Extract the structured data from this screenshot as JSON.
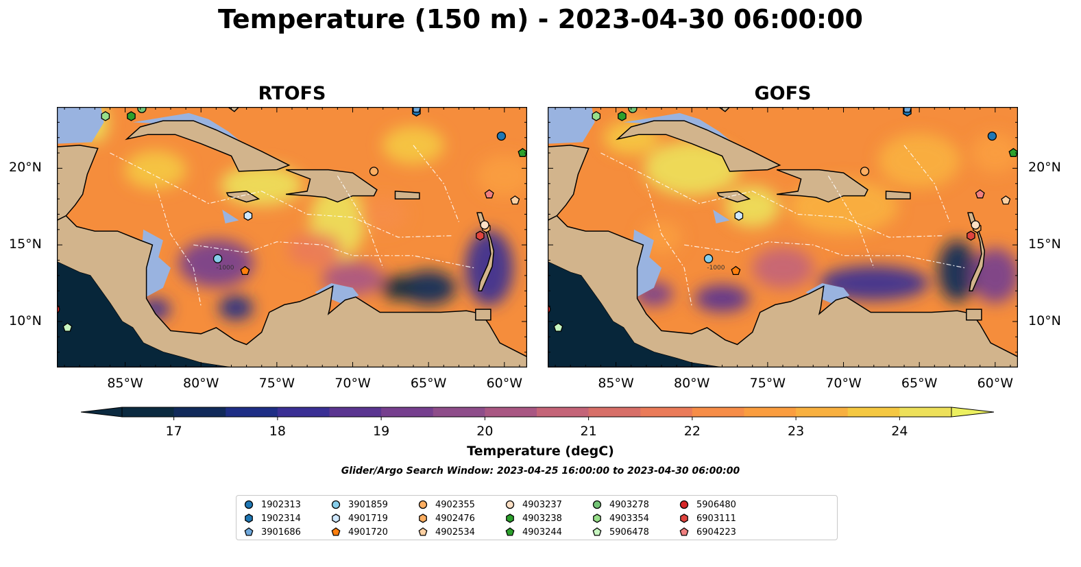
{
  "title": "Temperature (150 m) - 2023-04-30 06:00:00",
  "panels": [
    {
      "title": "RTOFS"
    },
    {
      "title": "GOFS"
    }
  ],
  "map": {
    "lon_range": [
      -89.5,
      -58.5
    ],
    "lat_range": [
      7,
      24
    ],
    "lat_ticks": [
      {
        "value": 20,
        "label": "20°N"
      },
      {
        "value": 15,
        "label": "15°N"
      },
      {
        "value": 10,
        "label": "10°N"
      }
    ],
    "lon_ticks": [
      {
        "value": -85,
        "label": "85°W"
      },
      {
        "value": -80,
        "label": "80°W"
      },
      {
        "value": -75,
        "label": "75°W"
      },
      {
        "value": -70,
        "label": "70°W"
      },
      {
        "value": -65,
        "label": "65°W"
      },
      {
        "value": -60,
        "label": "60°W"
      }
    ],
    "contour_label": "-1000",
    "colors": {
      "land": "#d2b48c",
      "shelf": "#99b3e0",
      "deep": "#07263a",
      "warm": "#f58a3a"
    }
  },
  "colorbar": {
    "label": "Temperature (degC)",
    "min": 16.5,
    "max": 24.5,
    "ticks": [
      "17",
      "18",
      "19",
      "20",
      "21",
      "22",
      "23",
      "24"
    ],
    "colors": [
      "#0b2a40",
      "#112a5a",
      "#1e2e85",
      "#3a2f94",
      "#5a3590",
      "#763f8e",
      "#8e4d8a",
      "#a95783",
      "#c46478",
      "#d76f68",
      "#ea7b59",
      "#f68d48",
      "#fa9d3f",
      "#f8b040",
      "#f5c842",
      "#ede05a"
    ]
  },
  "search_window": "Glider/Argo Search Window: 2023-04-25 16:00:00 to 2023-04-30 06:00:00",
  "floats": [
    {
      "id": "1902313",
      "marker": "circle",
      "color": "#1f77b4",
      "lon": -60.2,
      "lat": 22.1
    },
    {
      "id": "1902314",
      "marker": "hexagon",
      "color": "#1f77b4",
      "lon": -65.8,
      "lat": 23.7
    },
    {
      "id": "3901686",
      "marker": "pentagon",
      "color": "#6fa8dc",
      "lon": -65.8,
      "lat": 23.9
    },
    {
      "id": "3901859",
      "marker": "circle",
      "color": "#87ceeb",
      "lon": -78.9,
      "lat": 14.1
    },
    {
      "id": "4901719",
      "marker": "hexagon",
      "color": "#cfe8ff",
      "lon": -76.9,
      "lat": 16.9
    },
    {
      "id": "4901720",
      "marker": "pentagon",
      "color": "#ff7f0e",
      "lon": -77.1,
      "lat": 13.3
    },
    {
      "id": "4902355",
      "marker": "circle",
      "color": "#fdae61",
      "lon": -68.6,
      "lat": 19.8
    },
    {
      "id": "4902476",
      "marker": "hexagon",
      "color": "#fdae61",
      "lon": -61.2,
      "lat": 16.1
    },
    {
      "id": "4902534",
      "marker": "pentagon",
      "color": "#fdd0a2",
      "lon": -59.3,
      "lat": 17.9
    },
    {
      "id": "4903237",
      "marker": "circle",
      "color": "#fde0c5",
      "lon": -61.3,
      "lat": 16.3
    },
    {
      "id": "4903238",
      "marker": "hexagon",
      "color": "#2ca02c",
      "lon": -84.6,
      "lat": 23.4
    },
    {
      "id": "4903244",
      "marker": "pentagon",
      "color": "#2ca02c",
      "lon": -58.8,
      "lat": 21.0
    },
    {
      "id": "4903278",
      "marker": "circle",
      "color": "#74c476",
      "lon": -83.9,
      "lat": 23.9
    },
    {
      "id": "4903354",
      "marker": "hexagon",
      "color": "#98df8a",
      "lon": -86.3,
      "lat": 23.4
    },
    {
      "id": "5906478",
      "marker": "pentagon",
      "color": "#c7f5c0",
      "lon": -88.8,
      "lat": 9.6
    },
    {
      "id": "5906480",
      "marker": "circle",
      "color": "#d62728",
      "lon": -89.6,
      "lat": 10.8
    },
    {
      "id": "6903111",
      "marker": "hexagon",
      "color": "#e0443e",
      "lon": -61.6,
      "lat": 15.6
    },
    {
      "id": "6904223",
      "marker": "pentagon",
      "color": "#f08080",
      "lon": -61.0,
      "lat": 18.3
    }
  ]
}
